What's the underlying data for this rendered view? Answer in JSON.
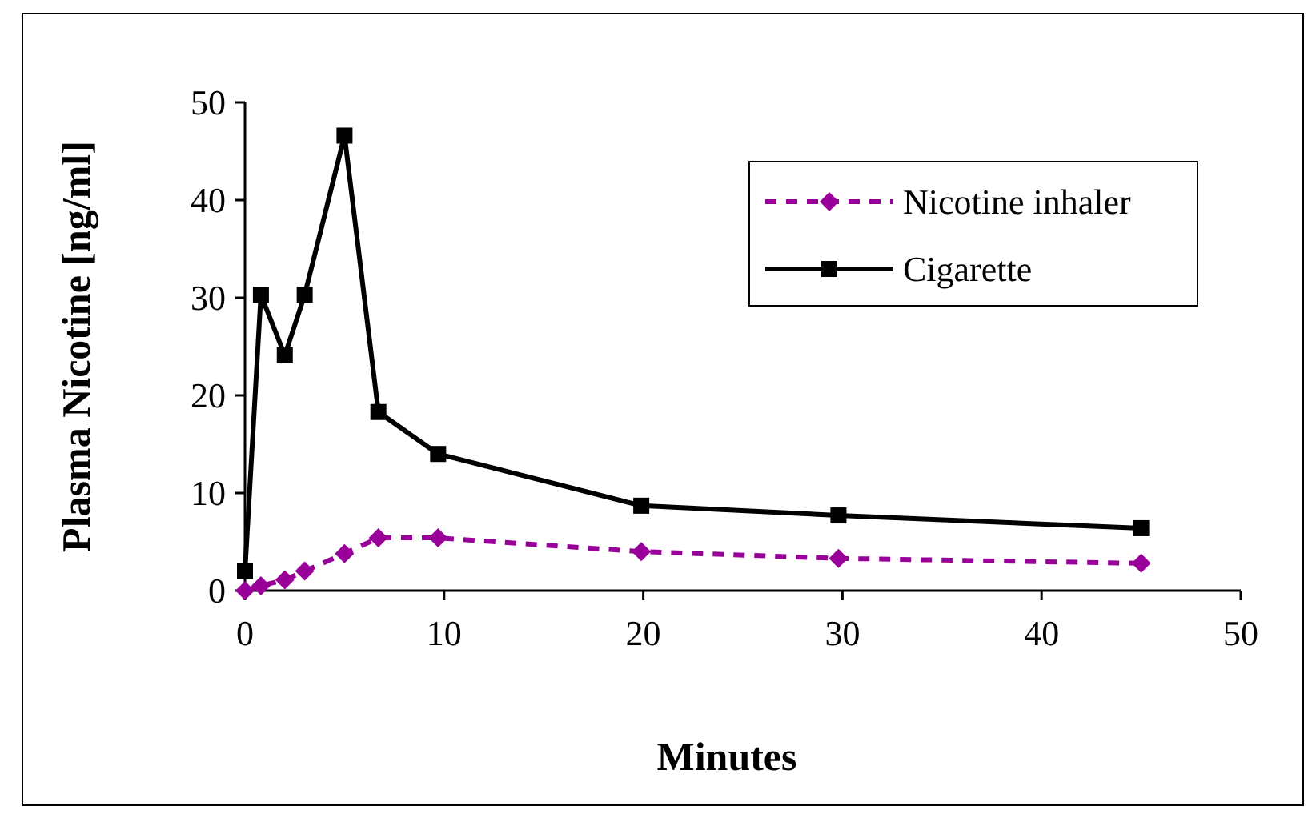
{
  "chart_data": {
    "type": "line",
    "xlabel": "Minutes",
    "ylabel": "Plasma Nicotine [ng/ml]",
    "xlim": [
      0,
      50
    ],
    "xticks": [
      0,
      10,
      20,
      30,
      40,
      50
    ],
    "ylim": [
      0,
      50
    ],
    "yticks": [
      0,
      10,
      20,
      30,
      40,
      50
    ],
    "grid": false,
    "legend": "top right",
    "series": [
      {
        "name": "Nicotine inhaler",
        "color": "#990099",
        "marker": "diamond",
        "line_style": "dashed",
        "x": [
          0,
          0.8,
          2,
          3,
          5,
          6.7,
          9.7,
          19.9,
          29.8,
          45
        ],
        "values": [
          0,
          0.5,
          1.1,
          2,
          3.8,
          5.4,
          5.4,
          4,
          3.3,
          2.8
        ]
      },
      {
        "name": "Cigarette",
        "color": "#000000",
        "marker": "square",
        "line_style": "solid",
        "x": [
          0,
          0.8,
          2,
          3,
          5,
          6.7,
          9.7,
          19.9,
          29.8,
          45
        ],
        "values": [
          2,
          30.3,
          24.1,
          30.3,
          46.6,
          18.3,
          14,
          8.7,
          7.7,
          6.4
        ]
      }
    ]
  }
}
